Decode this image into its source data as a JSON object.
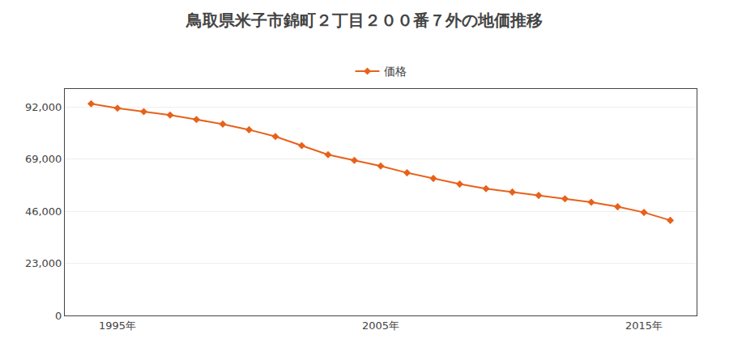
{
  "chart_data": {
    "type": "line",
    "title": "鳥取県米子市錦町２丁目２００番７外の地価推移",
    "x": [
      1994,
      1995,
      1996,
      1997,
      1998,
      1999,
      2000,
      2001,
      2002,
      2003,
      2004,
      2005,
      2006,
      2007,
      2008,
      2009,
      2010,
      2011,
      2012,
      2013,
      2014,
      2015,
      2016
    ],
    "series": [
      {
        "name": "価格",
        "color": "#E8611A",
        "marker": "diamond",
        "line_style": "solid",
        "values": [
          93500,
          91500,
          90000,
          88500,
          86500,
          84500,
          82000,
          79000,
          75000,
          71000,
          68500,
          66000,
          63000,
          60500,
          58000,
          56000,
          54500,
          53000,
          51500,
          50000,
          48000,
          45500,
          42000
        ]
      }
    ],
    "xlim": [
      1993,
      2017
    ],
    "xticks": [
      {
        "value": 1995,
        "label": "1995年"
      },
      {
        "value": 2005,
        "label": "2005年"
      },
      {
        "value": 2015,
        "label": "2015年"
      }
    ],
    "ylim": [
      0,
      100000
    ],
    "yticks": [
      0,
      {
        "value": 23000,
        "label": "23,000"
      },
      {
        "value": 46000,
        "label": "46,000"
      },
      {
        "value": 69000,
        "label": "69,000"
      },
      {
        "value": 92000,
        "label": "92,000"
      }
    ],
    "grid": "y",
    "legend": "top"
  }
}
